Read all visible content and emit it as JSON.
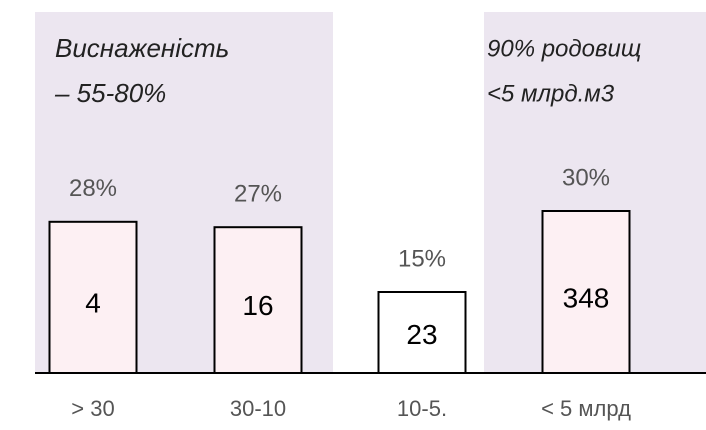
{
  "chart_data": {
    "type": "bar",
    "categories": [
      "> 30",
      "30-10",
      "10-5.",
      "< 5 млрд"
    ],
    "values": [
      28,
      27,
      15,
      30
    ],
    "value_labels": [
      "28%",
      "27%",
      "15%",
      "30%"
    ],
    "inner_labels": [
      4,
      16,
      23,
      348
    ],
    "colors": [
      "#fdf0f3",
      "#fdf0f3",
      "#ffffff",
      "#fdf0f3"
    ],
    "annotations": [
      {
        "lines": [
          "Виснаженість",
          "– 55-80%"
        ]
      },
      {
        "lines": [
          "90% родовищ",
          "<5 млрд.м3"
        ]
      }
    ]
  }
}
